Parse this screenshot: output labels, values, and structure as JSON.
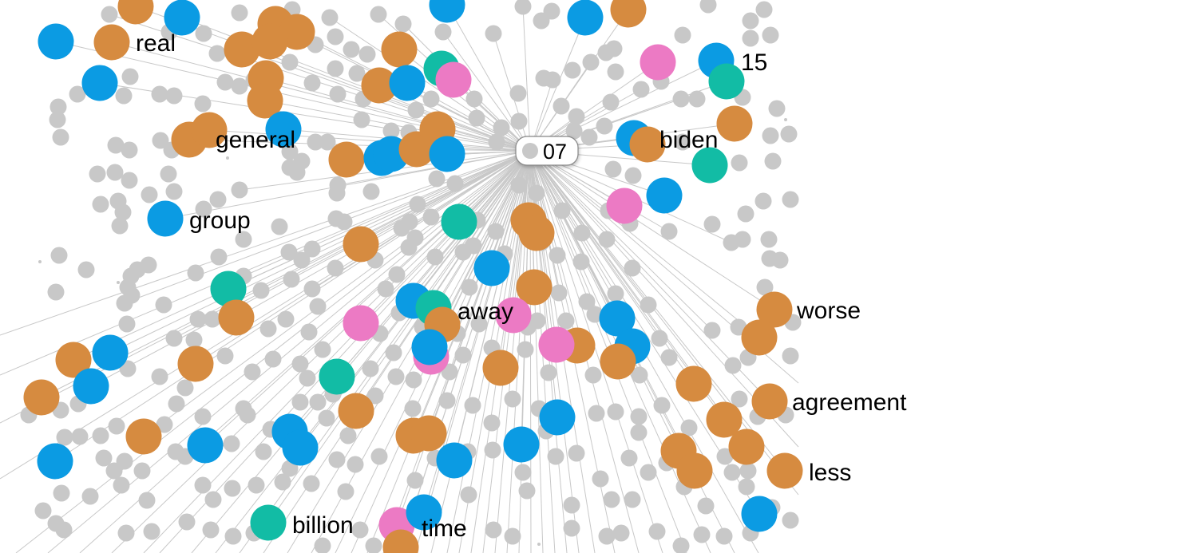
{
  "colors": {
    "background": "#ffffff",
    "edge": "#c8c8c8",
    "gray": "#c8c8c8",
    "blue": "#0b9be3",
    "orange": "#d68b40",
    "teal": "#12bca5",
    "pink": "#ec7ac4",
    "label": "#000000"
  },
  "center": {
    "label": "07"
  },
  "labels": {
    "real": "real",
    "general": "general",
    "group": "group",
    "n15": "15",
    "biden": "biden",
    "away": "away",
    "worse": "worse",
    "agreement": "agreement",
    "less": "less",
    "billion": "billion",
    "time": "time"
  }
}
